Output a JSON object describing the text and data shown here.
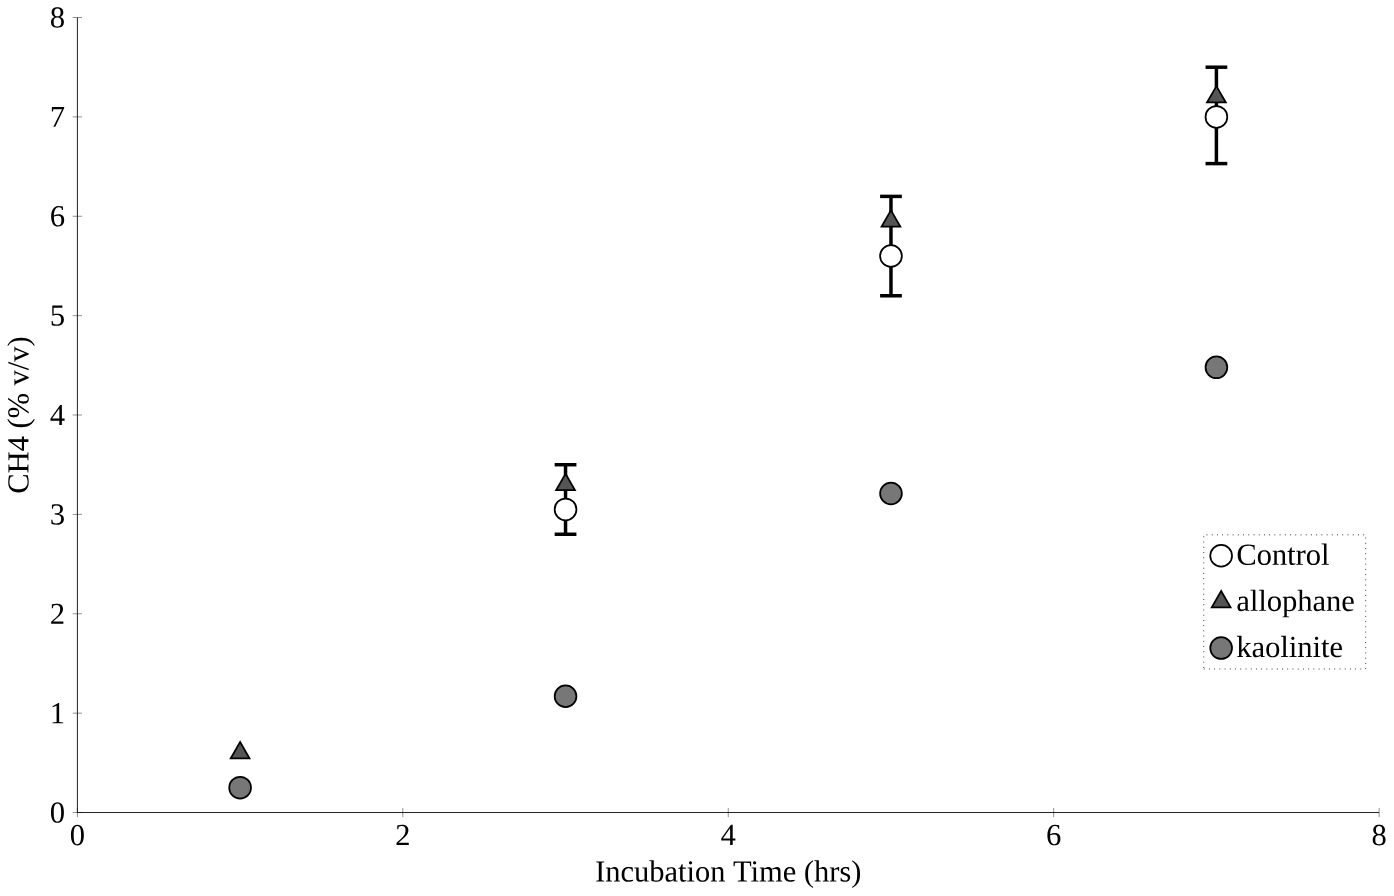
{
  "chart_data": {
    "type": "scatter",
    "xlabel": "Incubation Time (hrs)",
    "ylabel": "CH4 (% v/v)",
    "x": [
      1,
      3,
      5,
      7
    ],
    "series": [
      {
        "name": "Control",
        "color": "#ffffff",
        "marker": "circle",
        "values": [
          null,
          3.05,
          5.6,
          7.0
        ],
        "errors": [
          null,
          [
            2.8,
            3.5
          ],
          [
            5.2,
            6.2
          ],
          [
            6.53,
            7.5
          ]
        ]
      },
      {
        "name": "allophane",
        "color": "#555555",
        "marker": "triangle",
        "values": [
          0.6,
          3.3,
          5.95,
          7.2
        ]
      },
      {
        "name": "kaolinite",
        "color": "#777777",
        "marker": "circle",
        "values": [
          0.25,
          1.17,
          3.21,
          4.48
        ]
      }
    ],
    "xlim": [
      0,
      8
    ],
    "ylim": [
      0,
      8
    ],
    "xticks": [
      0,
      2,
      4,
      6,
      8
    ],
    "yticks": [
      0,
      1,
      2,
      3,
      4,
      5,
      6,
      7,
      8
    ],
    "grid": false,
    "legend": "right"
  }
}
